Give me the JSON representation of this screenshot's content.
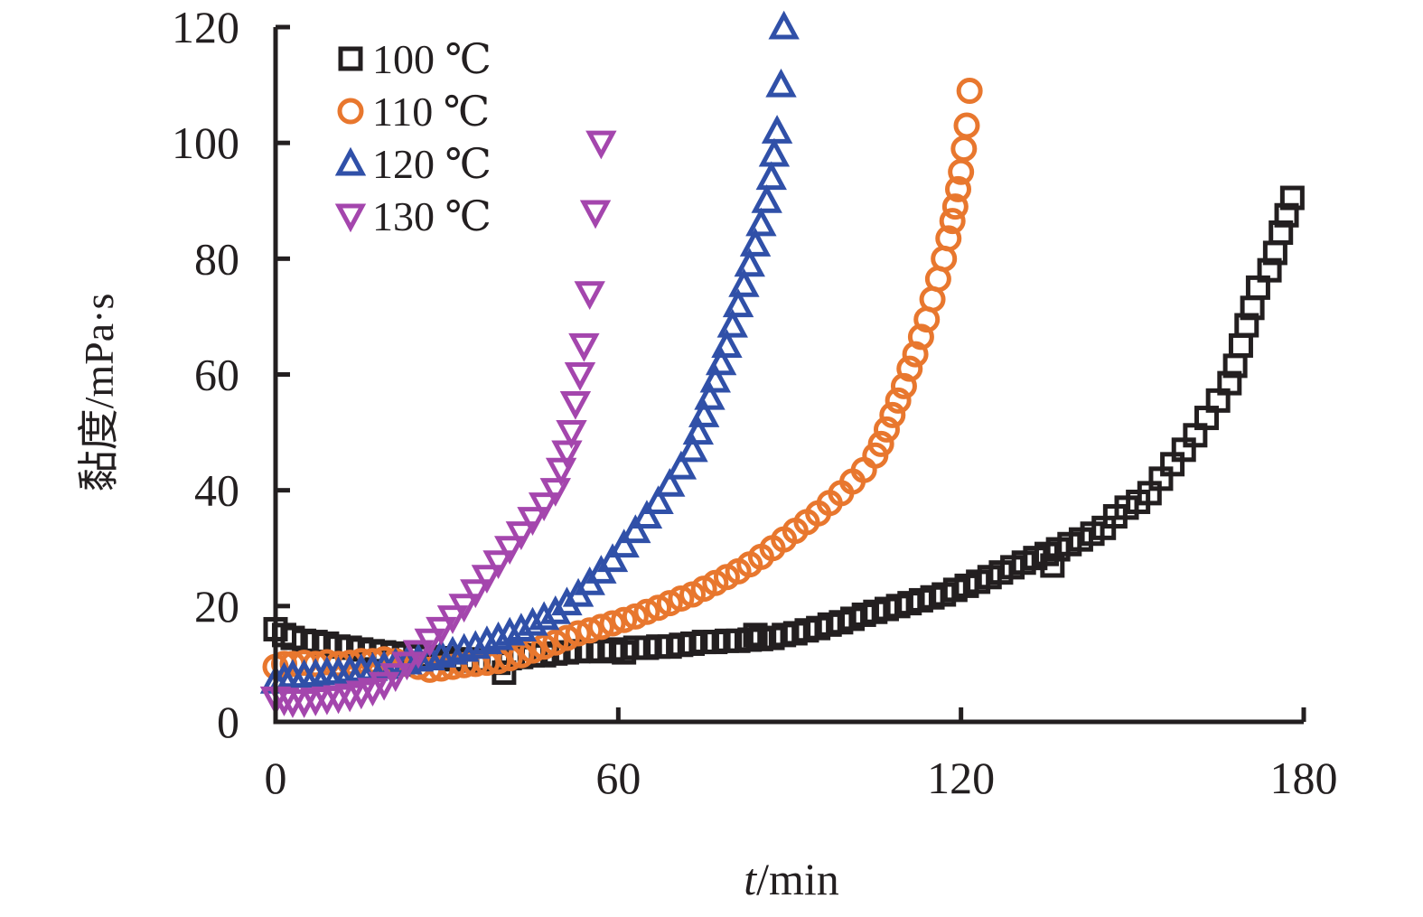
{
  "chart_data": {
    "type": "scatter",
    "title": "",
    "xlabel_italic": "t",
    "xlabel_rest": "/min",
    "ylabel": "黏度/mPa·s",
    "xlim": [
      0,
      180
    ],
    "ylim": [
      0,
      120
    ],
    "xticks": [
      "0",
      "60",
      "120",
      "180"
    ],
    "yticks": [
      "0",
      "20",
      "40",
      "60",
      "80",
      "100",
      "120"
    ],
    "legend": "top-left",
    "grid": false,
    "series": [
      {
        "name": "100 ℃",
        "marker": "square",
        "color": "#231f20",
        "points": [
          [
            0,
            16
          ],
          [
            1.5,
            15
          ],
          [
            3,
            14.5
          ],
          [
            5,
            14
          ],
          [
            7,
            13.8
          ],
          [
            9,
            13.5
          ],
          [
            11,
            13
          ],
          [
            13,
            12.8
          ],
          [
            15,
            12.5
          ],
          [
            17,
            12.2
          ],
          [
            19,
            12
          ],
          [
            21,
            11.8
          ],
          [
            23,
            11.5
          ],
          [
            25,
            11.3
          ],
          [
            27,
            11.2
          ],
          [
            29,
            11
          ],
          [
            31,
            10.8
          ],
          [
            33,
            10.8
          ],
          [
            35,
            10.6
          ],
          [
            37,
            10.5
          ],
          [
            39,
            10.2
          ],
          [
            40,
            8.5
          ],
          [
            41,
            11
          ],
          [
            43,
            11.2
          ],
          [
            45,
            11.5
          ],
          [
            47,
            11.5
          ],
          [
            49,
            11.8
          ],
          [
            51,
            12
          ],
          [
            53,
            12.2
          ],
          [
            55,
            12.3
          ],
          [
            57,
            12.2
          ],
          [
            59,
            12.5
          ],
          [
            61,
            12
          ],
          [
            63,
            12.8
          ],
          [
            65,
            12.8
          ],
          [
            67,
            13
          ],
          [
            69,
            13
          ],
          [
            71,
            13.3
          ],
          [
            73,
            13.5
          ],
          [
            75,
            13.8
          ],
          [
            77,
            13.8
          ],
          [
            79,
            14
          ],
          [
            81,
            14
          ],
          [
            83,
            14.2
          ],
          [
            84,
            15
          ],
          [
            85,
            14.3
          ],
          [
            87,
            14.5
          ],
          [
            89,
            15
          ],
          [
            91,
            15.3
          ],
          [
            93,
            15.8
          ],
          [
            95,
            16.2
          ],
          [
            97,
            16.8
          ],
          [
            99,
            17.2
          ],
          [
            101,
            17.8
          ],
          [
            103,
            18.5
          ],
          [
            105,
            19
          ],
          [
            107,
            19.5
          ],
          [
            109,
            20
          ],
          [
            111,
            20.5
          ],
          [
            113,
            21
          ],
          [
            115,
            21.5
          ],
          [
            117,
            22
          ],
          [
            119,
            22.8
          ],
          [
            121,
            23.5
          ],
          [
            123,
            24.2
          ],
          [
            125,
            25
          ],
          [
            127,
            25.8
          ],
          [
            129,
            26.7
          ],
          [
            131,
            27.5
          ],
          [
            133,
            28.3
          ],
          [
            135,
            29
          ],
          [
            136,
            27
          ],
          [
            137,
            29.8
          ],
          [
            139,
            30.7
          ],
          [
            141,
            31.5
          ],
          [
            143,
            32.5
          ],
          [
            145,
            33.5
          ],
          [
            147,
            35.5
          ],
          [
            149,
            37
          ],
          [
            151,
            38
          ],
          [
            153,
            39.5
          ],
          [
            155,
            42
          ],
          [
            157,
            44.5
          ],
          [
            159,
            47
          ],
          [
            161,
            49.5
          ],
          [
            163,
            52.5
          ],
          [
            165,
            55.5
          ],
          [
            167,
            58.5
          ],
          [
            168,
            61.5
          ],
          [
            169,
            65
          ],
          [
            170,
            68.5
          ],
          [
            171,
            71.5
          ],
          [
            172,
            75
          ],
          [
            174,
            78
          ],
          [
            175,
            81
          ],
          [
            176,
            84.5
          ],
          [
            177,
            87.5
          ],
          [
            178,
            90.5
          ]
        ]
      },
      {
        "name": "110 ℃",
        "marker": "circle",
        "color": "#e8772e",
        "points": [
          [
            0,
            9.5
          ],
          [
            1.5,
            10
          ],
          [
            3,
            10
          ],
          [
            5,
            10.2
          ],
          [
            7,
            10
          ],
          [
            9,
            10.3
          ],
          [
            11,
            10
          ],
          [
            13,
            10.2
          ],
          [
            15,
            10.5
          ],
          [
            17,
            10.5
          ],
          [
            19,
            10.8
          ],
          [
            21,
            10.5
          ],
          [
            23,
            10
          ],
          [
            25,
            9.5
          ],
          [
            27,
            9
          ],
          [
            29,
            9.2
          ],
          [
            31,
            9.5
          ],
          [
            33,
            9.8
          ],
          [
            35,
            10
          ],
          [
            37,
            10.2
          ],
          [
            39,
            10.5
          ],
          [
            41,
            11
          ],
          [
            43,
            11.5
          ],
          [
            45,
            12.3
          ],
          [
            47,
            13
          ],
          [
            49,
            13.7
          ],
          [
            51,
            14.5
          ],
          [
            53,
            15.3
          ],
          [
            55,
            15.8
          ],
          [
            57,
            16.4
          ],
          [
            59,
            17
          ],
          [
            61,
            17.6
          ],
          [
            63,
            18.2
          ],
          [
            65,
            19
          ],
          [
            67,
            19.7
          ],
          [
            69,
            20.5
          ],
          [
            71,
            21.3
          ],
          [
            73,
            22
          ],
          [
            75,
            23
          ],
          [
            77,
            24
          ],
          [
            79,
            25
          ],
          [
            81,
            26
          ],
          [
            83,
            27.2
          ],
          [
            85,
            28.5
          ],
          [
            87,
            30
          ],
          [
            89,
            31.5
          ],
          [
            91,
            33
          ],
          [
            93,
            34.5
          ],
          [
            95,
            36
          ],
          [
            97,
            37.8
          ],
          [
            99,
            39.5
          ],
          [
            101,
            41.5
          ],
          [
            103,
            43.5
          ],
          [
            105,
            46
          ],
          [
            106,
            48
          ],
          [
            107,
            50.5
          ],
          [
            108,
            53
          ],
          [
            109,
            55.5
          ],
          [
            110,
            58
          ],
          [
            111,
            61
          ],
          [
            112,
            63.5
          ],
          [
            113,
            66.5
          ],
          [
            114,
            69.5
          ],
          [
            115,
            73
          ],
          [
            116,
            76.5
          ],
          [
            117,
            80
          ],
          [
            117.8,
            83.5
          ],
          [
            118.5,
            86.5
          ],
          [
            119,
            89
          ],
          [
            119.5,
            92
          ],
          [
            120,
            95
          ],
          [
            120.5,
            99
          ],
          [
            121,
            103
          ],
          [
            121.5,
            109
          ]
        ]
      },
      {
        "name": "120 ℃",
        "marker": "triangle-up",
        "color": "#3050a8",
        "points": [
          [
            0,
            7
          ],
          [
            1.5,
            7.5
          ],
          [
            3,
            8
          ],
          [
            5,
            8
          ],
          [
            7,
            8.2
          ],
          [
            9,
            8.5
          ],
          [
            11,
            8.5
          ],
          [
            13,
            8.8
          ],
          [
            15,
            9
          ],
          [
            17,
            9.2
          ],
          [
            19,
            9.5
          ],
          [
            21,
            10
          ],
          [
            23,
            10.3
          ],
          [
            25,
            10.8
          ],
          [
            27,
            11
          ],
          [
            29,
            11.5
          ],
          [
            31,
            12
          ],
          [
            33,
            12.5
          ],
          [
            35,
            13
          ],
          [
            37,
            13.8
          ],
          [
            39,
            14.5
          ],
          [
            41,
            15.3
          ],
          [
            43,
            16
          ],
          [
            45,
            17
          ],
          [
            47,
            18
          ],
          [
            49,
            19
          ],
          [
            51,
            20.5
          ],
          [
            53,
            22
          ],
          [
            55,
            24
          ],
          [
            57,
            26
          ],
          [
            59,
            28
          ],
          [
            61,
            30.5
          ],
          [
            63,
            33
          ],
          [
            65,
            35.5
          ],
          [
            67,
            38
          ],
          [
            69,
            41
          ],
          [
            71,
            44
          ],
          [
            73,
            47
          ],
          [
            74,
            50
          ],
          [
            75,
            53
          ],
          [
            76,
            56
          ],
          [
            77,
            59
          ],
          [
            78,
            62
          ],
          [
            79,
            65
          ],
          [
            80,
            68.5
          ],
          [
            81,
            72
          ],
          [
            82,
            75.5
          ],
          [
            83,
            79
          ],
          [
            84,
            82.5
          ],
          [
            85,
            86
          ],
          [
            86,
            90
          ],
          [
            86.8,
            94
          ],
          [
            87.3,
            98
          ],
          [
            87.8,
            102
          ],
          [
            88.5,
            110
          ],
          [
            89,
            120
          ]
        ]
      },
      {
        "name": "130 ℃",
        "marker": "triangle-down",
        "color": "#a446ad",
        "points": [
          [
            0,
            4
          ],
          [
            1.5,
            3.8
          ],
          [
            3,
            3.5
          ],
          [
            5,
            3.5
          ],
          [
            7,
            3.8
          ],
          [
            9,
            4
          ],
          [
            11,
            4.2
          ],
          [
            13,
            4.5
          ],
          [
            15,
            5
          ],
          [
            17,
            5.5
          ],
          [
            19,
            6.5
          ],
          [
            21,
            8
          ],
          [
            23,
            10
          ],
          [
            25,
            12
          ],
          [
            27,
            14
          ],
          [
            29,
            16
          ],
          [
            31,
            18
          ],
          [
            33,
            20
          ],
          [
            35,
            22.5
          ],
          [
            37,
            25
          ],
          [
            39,
            27.5
          ],
          [
            41,
            30
          ],
          [
            43,
            32.5
          ],
          [
            45,
            35
          ],
          [
            47,
            37.5
          ],
          [
            49,
            40
          ],
          [
            50,
            43.5
          ],
          [
            51,
            46.5
          ],
          [
            51.8,
            50
          ],
          [
            52.5,
            55
          ],
          [
            53.3,
            60
          ],
          [
            54,
            65
          ],
          [
            55,
            74
          ],
          [
            56,
            88
          ],
          [
            57,
            100
          ]
        ]
      }
    ]
  }
}
